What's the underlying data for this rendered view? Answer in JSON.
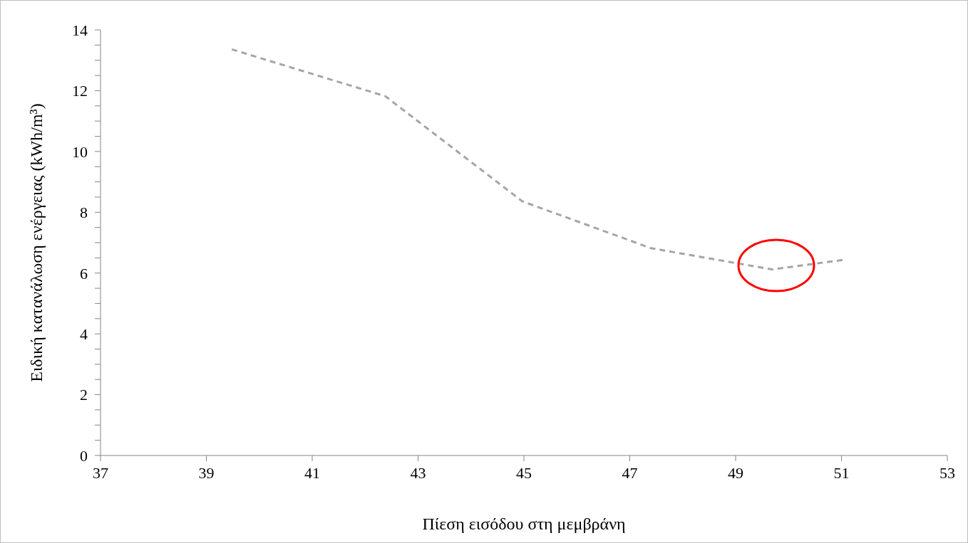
{
  "chart_data": {
    "type": "line",
    "xlabel": "Πίεση εισόδου στη μεμβράνη",
    "ylabel": "Ειδική κατανάλωση ενέργειας (kWh/m³)",
    "x": [
      39.48,
      42.38,
      44.97,
      47.4,
      49.69,
      51.02
    ],
    "series": [
      {
        "color": "#a6a6a6",
        "values": [
          13.36,
          11.82,
          8.36,
          6.82,
          6.12,
          6.43
        ]
      }
    ],
    "xlim": [
      37,
      53
    ],
    "xticks": [
      37,
      39,
      41,
      43,
      45,
      47,
      49,
      51,
      53
    ],
    "ylim": [
      0,
      14
    ],
    "yticks": [
      0,
      {
        "value": 0.5,
        "label": null
      },
      {
        "value": 1,
        "label": null
      },
      {
        "value": 1.5,
        "label": null
      },
      2,
      {
        "value": 2.5,
        "label": null
      },
      {
        "value": 3,
        "label": null
      },
      {
        "value": 3.5,
        "label": null
      },
      4,
      {
        "value": 4.5,
        "label": null
      },
      {
        "value": 5,
        "label": null
      },
      {
        "value": 5.5,
        "label": null
      },
      6,
      {
        "value": 6.5,
        "label": null
      },
      {
        "value": 7,
        "label": null
      },
      {
        "value": 7.5,
        "label": null
      },
      8,
      {
        "value": 8.5,
        "label": null
      },
      {
        "value": 9,
        "label": null
      },
      {
        "value": 9.5,
        "label": null
      },
      10,
      {
        "value": 10.5,
        "label": null
      },
      {
        "value": 11,
        "label": null
      },
      {
        "value": 11.5,
        "label": null
      },
      12,
      {
        "value": 12.5,
        "label": null
      },
      {
        "value": 13,
        "label": null
      },
      {
        "value": 13.5,
        "label": null
      },
      14
    ],
    "grid": false,
    "legend": false,
    "marker": "none",
    "line_style": "dashed"
  }
}
